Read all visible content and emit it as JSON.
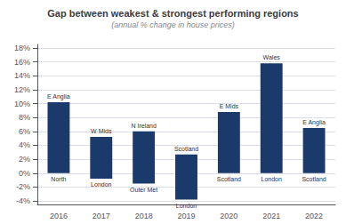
{
  "chart_data": {
    "type": "bar",
    "title": "Gap between weakest & strongest performing regions",
    "subtitle": "(annual % change in house prices)",
    "categories": [
      "2016",
      "2017",
      "2018",
      "2019",
      "2020",
      "2021",
      "2022"
    ],
    "values": [
      10.2,
      5.2,
      6.0,
      2.7,
      8.8,
      15.8,
      6.5
    ],
    "bottoms": [
      0,
      -0.8,
      -1.5,
      -3.8,
      0,
      0,
      0
    ],
    "top_labels": [
      "E Anglia",
      "W Mids",
      "N Ireland",
      "Scotland",
      "E Mids",
      "Wales",
      "E Anglia"
    ],
    "bottom_labels": [
      "North",
      "London",
      "Outer Met",
      "London",
      "Scotland",
      "London",
      "Scotland"
    ],
    "color": "#1a3a6b",
    "ylim": [
      -4.5,
      18.5
    ],
    "yticks": [
      {
        "value": -4,
        "label": "-4%"
      },
      {
        "value": -2,
        "label": "-2%"
      },
      {
        "value": 0,
        "label": "0%"
      },
      {
        "value": 2,
        "label": "2%"
      },
      {
        "value": 4,
        "label": "4%"
      },
      {
        "value": 6,
        "label": "6%"
      },
      {
        "value": 8,
        "label": "8%"
      },
      {
        "value": 10,
        "label": "10%"
      },
      {
        "value": 12,
        "label": "12%"
      },
      {
        "value": 14,
        "label": "14%"
      },
      {
        "value": 16,
        "label": "16%"
      },
      {
        "value": 18,
        "label": "18%"
      }
    ],
    "grid": true
  }
}
